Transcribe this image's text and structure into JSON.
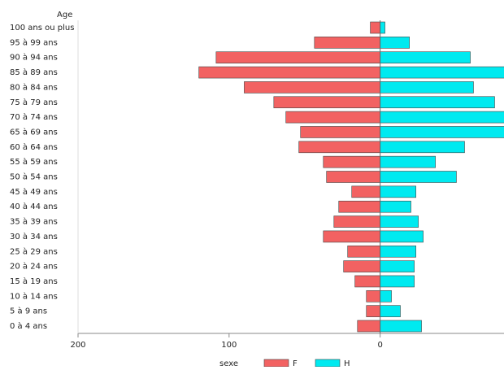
{
  "chart_data": {
    "type": "pyramid",
    "y_label": "Age",
    "legend_title": "sexe",
    "categories": [
      "100 ans ou plus",
      "95 à 99 ans",
      "90 à 94 ans",
      "85 à 89 ans",
      "80 à 84 ans",
      "75 à 79 ans",
      "70 à 74 ans",
      "65 à 69 ans",
      "60 à 64 ans",
      "55 à 59 ans",
      "50 à 54 ans",
      "45 à 49 ans",
      "40 à 44 ans",
      "35 à 39 ans",
      "30 à 34 ans",
      "25 à 29 ans",
      "20 à 24 ans",
      "15 à 19 ans",
      "10 à 14 ans",
      "5 à 9 ans",
      "0 à 4 ans"
    ],
    "series": [
      {
        "name": "F",
        "color": "#f26262",
        "values": [
          -6.5,
          -43.5,
          -108.6,
          -120,
          -90,
          -70.4,
          -62.4,
          -52.7,
          -53.8,
          -37.6,
          -35.5,
          -18.8,
          -27.4,
          -30.6,
          -37.6,
          -21.5,
          -24.2,
          -16.7,
          -9.1,
          -9.1,
          -15
        ]
      },
      {
        "name": "H",
        "color": "#00eaf0",
        "values": [
          3.2,
          19.4,
          59.7,
          90,
          61.8,
          75.8,
          88,
          84,
          55.9,
          36.6,
          50.5,
          23.7,
          20.4,
          25.3,
          28.5,
          23.7,
          22.6,
          22.6,
          7.5,
          13.4,
          27.4
        ]
      }
    ],
    "xlim": [
      -200,
      82
    ],
    "xticks": [
      {
        "value": -200,
        "label": "200"
      },
      {
        "value": -100,
        "label": "100"
      },
      0
    ]
  }
}
